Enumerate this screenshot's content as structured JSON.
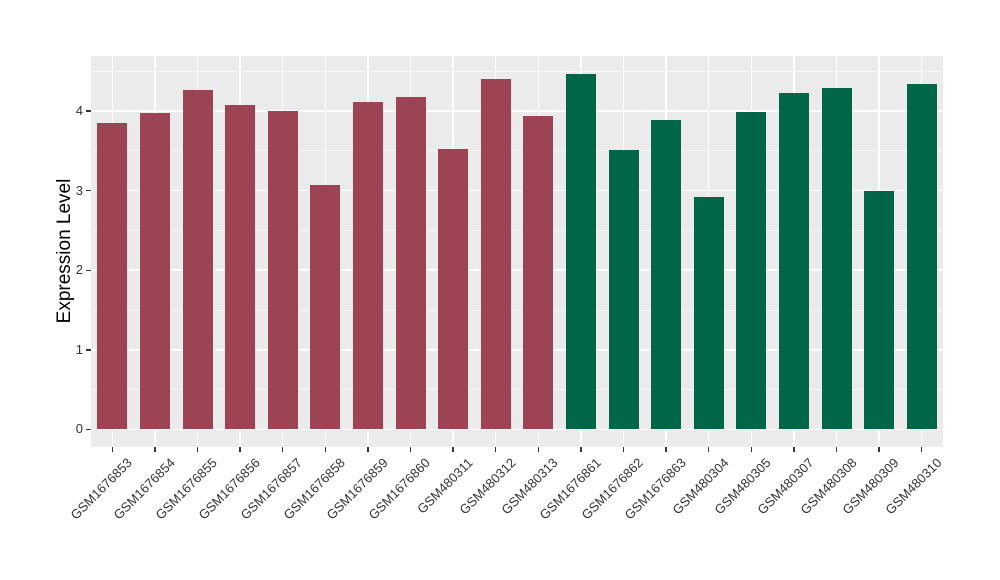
{
  "chart_data": {
    "type": "bar",
    "title": "",
    "xlabel": "",
    "ylabel": "Expression Level",
    "categories": [
      "GSM1676853",
      "GSM1676854",
      "GSM1676855",
      "GSM1676856",
      "GSM1676857",
      "GSM1676858",
      "GSM1676859",
      "GSM1676860",
      "GSM480311",
      "GSM480312",
      "GSM480313",
      "GSM1676861",
      "GSM1676862",
      "GSM1676863",
      "GSM480304",
      "GSM480305",
      "GSM480307",
      "GSM480308",
      "GSM480309",
      "GSM480310"
    ],
    "values": [
      3.85,
      3.97,
      4.26,
      4.08,
      4.0,
      3.07,
      4.11,
      4.18,
      3.52,
      4.4,
      3.94,
      4.46,
      3.51,
      3.89,
      2.92,
      3.99,
      4.23,
      4.29,
      3.0,
      4.34
    ],
    "bar_colors": [
      "#9C4453",
      "#9C4453",
      "#9C4453",
      "#9C4453",
      "#9C4453",
      "#9C4453",
      "#9C4453",
      "#9C4453",
      "#9C4453",
      "#9C4453",
      "#9C4453",
      "#006647",
      "#006647",
      "#006647",
      "#006647",
      "#006647",
      "#006647",
      "#006647",
      "#006647",
      "#006647"
    ],
    "group_colors": {
      "left_group": "#9C4453",
      "right_group": "#006647"
    },
    "y_ticks": [
      0,
      1,
      2,
      3,
      4
    ],
    "y_tick_labels": [
      "0",
      "1",
      "2",
      "3",
      "4"
    ],
    "y_minor_ticks": [
      0.5,
      1.5,
      2.5,
      3.5,
      4.5
    ],
    "ylim": [
      -0.22,
      4.69
    ],
    "grid": "on",
    "legend": "none",
    "panel_background": "#EBEBEB",
    "major_grid_color": "#FFFFFF",
    "minor_grid_color": "#F5F5F5",
    "axis_text_color": "#333333"
  }
}
